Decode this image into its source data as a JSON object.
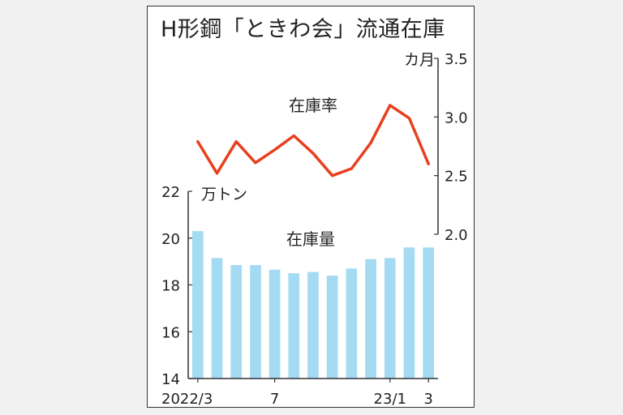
{
  "chart_data": {
    "title": "H形鋼「ときわ会」流通在庫",
    "x_tick_labels": [
      "2022/3",
      "7",
      "23/1",
      "3"
    ],
    "colors": {
      "bar": "#a5dbf2",
      "line": "#e8401f",
      "axis": "#333333",
      "text": "#222222"
    },
    "charts": [
      {
        "type": "bar",
        "series_label": "在庫量",
        "unit": "万トン",
        "ylim": [
          14,
          22
        ],
        "yticks": [
          14,
          16,
          18,
          20,
          22
        ],
        "categories": [
          "2022/3",
          "2022/4",
          "2022/5",
          "2022/6",
          "2022/7",
          "2022/8",
          "2022/9",
          "2022/10",
          "2022/11",
          "2022/12",
          "2023/1",
          "2023/2",
          "2023/3"
        ],
        "values": [
          20.3,
          19.15,
          18.85,
          18.85,
          18.65,
          18.5,
          18.55,
          18.4,
          18.7,
          19.1,
          19.15,
          19.6,
          19.6
        ]
      },
      {
        "type": "line",
        "series_label": "在庫率",
        "unit": "カ月",
        "ylim": [
          2.0,
          3.5
        ],
        "yticks": [
          "2.0",
          "2.5",
          "3.0",
          "3.5"
        ],
        "categories": [
          "2022/3",
          "2022/4",
          "2022/5",
          "2022/6",
          "2022/7",
          "2022/8",
          "2022/9",
          "2022/10",
          "2022/11",
          "2022/12",
          "2023/1",
          "2023/2",
          "2023/3"
        ],
        "values": [
          2.79,
          2.52,
          2.79,
          2.61,
          2.72,
          2.84,
          2.69,
          2.5,
          2.56,
          2.78,
          3.1,
          2.99,
          2.6
        ]
      }
    ]
  }
}
